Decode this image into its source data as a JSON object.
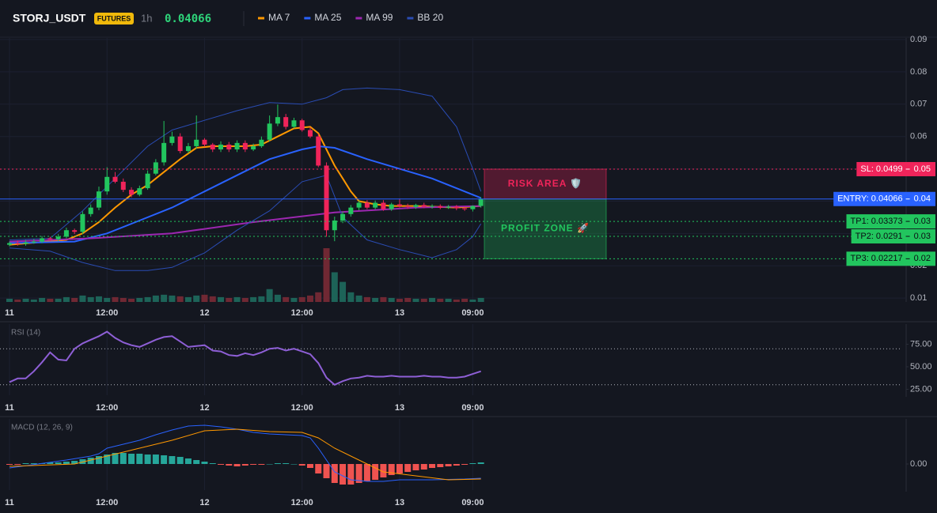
{
  "chart_data": [
    {
      "type": "candlestick",
      "title": "STORJ_USDT",
      "badge": "FUTURES",
      "interval": "1h",
      "last_price": 0.04066,
      "up_color": "#22c55e",
      "down_color": "#f0245a",
      "x": [
        0,
        1,
        2,
        3,
        4,
        5,
        6,
        7,
        8,
        9,
        10,
        11,
        12,
        13,
        14,
        15,
        16,
        17,
        18,
        19,
        20,
        21,
        22,
        23,
        24,
        25,
        26,
        27,
        28,
        29,
        30,
        31,
        32,
        33,
        34,
        35,
        36,
        37,
        38,
        39,
        40,
        41,
        42,
        43,
        44,
        45,
        46,
        47,
        48,
        49,
        50,
        51,
        52,
        53,
        54,
        55,
        56,
        57,
        58
      ],
      "open": [
        0.0265,
        0.027,
        0.0268,
        0.0272,
        0.0275,
        0.0285,
        0.0282,
        0.029,
        0.031,
        0.0305,
        0.036,
        0.038,
        0.043,
        0.0475,
        0.046,
        0.0435,
        0.042,
        0.044,
        0.0485,
        0.052,
        0.058,
        0.06,
        0.0555,
        0.057,
        0.059,
        0.0575,
        0.056,
        0.0575,
        0.056,
        0.058,
        0.056,
        0.057,
        0.059,
        0.064,
        0.066,
        0.063,
        0.065,
        0.062,
        0.06,
        0.051,
        0.031,
        0.034,
        0.036,
        0.038,
        0.0395,
        0.038,
        0.0395,
        0.0375,
        0.039,
        0.0385,
        0.0382,
        0.0388,
        0.0383,
        0.0385,
        0.038,
        0.0383,
        0.0378,
        0.0375,
        0.0385
      ],
      "high": [
        0.0275,
        0.0278,
        0.028,
        0.0283,
        0.0292,
        0.029,
        0.0298,
        0.0318,
        0.0315,
        0.0368,
        0.039,
        0.0445,
        0.0505,
        0.049,
        0.047,
        0.0443,
        0.0448,
        0.0495,
        0.053,
        0.0648,
        0.0615,
        0.061,
        0.058,
        0.0665,
        0.0595,
        0.058,
        0.0585,
        0.0583,
        0.0588,
        0.0588,
        0.0578,
        0.06,
        0.0665,
        0.0699,
        0.067,
        0.0658,
        0.0655,
        0.0628,
        0.0608,
        0.052,
        0.0352,
        0.0368,
        0.0388,
        0.0402,
        0.0403,
        0.0402,
        0.0403,
        0.0395,
        0.0408,
        0.0392,
        0.0392,
        0.0395,
        0.039,
        0.039,
        0.0388,
        0.0388,
        0.0383,
        0.0387,
        0.0412
      ],
      "low": [
        0.026,
        0.0262,
        0.0262,
        0.0268,
        0.027,
        0.0276,
        0.0276,
        0.0285,
        0.0298,
        0.0298,
        0.0352,
        0.0372,
        0.042,
        0.0455,
        0.0428,
        0.0412,
        0.0415,
        0.0435,
        0.048,
        0.051,
        0.0572,
        0.0548,
        0.0548,
        0.0562,
        0.0568,
        0.0552,
        0.0552,
        0.0552,
        0.0552,
        0.0552,
        0.0555,
        0.0565,
        0.0585,
        0.0632,
        0.0622,
        0.0625,
        0.0615,
        0.0595,
        0.0505,
        0.029,
        0.0276,
        0.0332,
        0.0352,
        0.0372,
        0.0375,
        0.0375,
        0.037,
        0.037,
        0.038,
        0.0376,
        0.0376,
        0.0378,
        0.0377,
        0.0375,
        0.0376,
        0.0372,
        0.037,
        0.0368,
        0.038
      ],
      "close": [
        0.027,
        0.0268,
        0.0272,
        0.0275,
        0.0285,
        0.0282,
        0.029,
        0.031,
        0.0305,
        0.036,
        0.038,
        0.043,
        0.0475,
        0.046,
        0.0435,
        0.042,
        0.044,
        0.0485,
        0.052,
        0.058,
        0.06,
        0.0555,
        0.057,
        0.059,
        0.0575,
        0.056,
        0.0575,
        0.056,
        0.058,
        0.056,
        0.057,
        0.059,
        0.064,
        0.066,
        0.063,
        0.065,
        0.062,
        0.06,
        0.051,
        0.031,
        0.034,
        0.036,
        0.038,
        0.0395,
        0.038,
        0.0395,
        0.0375,
        0.039,
        0.0385,
        0.0382,
        0.0388,
        0.0383,
        0.0385,
        0.038,
        0.0383,
        0.0378,
        0.0375,
        0.0385,
        0.04066
      ],
      "volume": [
        4,
        3,
        4,
        3,
        5,
        4,
        4,
        6,
        5,
        8,
        6,
        7,
        5,
        6,
        5,
        4,
        5,
        6,
        8,
        9,
        8,
        7,
        6,
        8,
        9,
        7,
        6,
        5,
        6,
        5,
        6,
        7,
        16,
        9,
        6,
        5,
        6,
        8,
        12,
        67,
        37,
        25,
        12,
        8,
        6,
        5,
        6,
        5,
        4,
        5,
        4,
        4,
        5,
        4,
        4,
        3,
        4,
        3,
        5
      ],
      "series": [
        {
          "name": "MA 7",
          "color": "#ff9800",
          "x": [
            0,
            7,
            9,
            11,
            13,
            15,
            17,
            19,
            21,
            23,
            25,
            27,
            29,
            31,
            33,
            35,
            37,
            38,
            39,
            40,
            41,
            42,
            43,
            45,
            47,
            50,
            55,
            58
          ],
          "values": [
            0.0265,
            0.028,
            0.03,
            0.0335,
            0.038,
            0.042,
            0.045,
            0.049,
            0.053,
            0.0565,
            0.057,
            0.057,
            0.057,
            0.0575,
            0.06,
            0.0625,
            0.063,
            0.061,
            0.056,
            0.051,
            0.047,
            0.043,
            0.04,
            0.039,
            0.0385,
            0.0385,
            0.038,
            0.0385
          ]
        },
        {
          "name": "MA 25",
          "color": "#2962ff",
          "x": [
            0,
            8,
            12,
            16,
            20,
            24,
            28,
            32,
            36,
            38,
            40,
            44,
            48,
            52,
            56,
            58
          ],
          "values": [
            0.027,
            0.0275,
            0.03,
            0.034,
            0.038,
            0.043,
            0.048,
            0.053,
            0.056,
            0.057,
            0.0565,
            0.053,
            0.05,
            0.047,
            0.043,
            0.041
          ]
        },
        {
          "name": "MA 99",
          "color": "#9c27b0",
          "x": [
            0,
            10,
            20,
            30,
            40,
            50,
            58
          ],
          "values": [
            0.0275,
            0.0285,
            0.03,
            0.0335,
            0.0365,
            0.038,
            0.0385
          ]
        },
        {
          "name": "BB 20",
          "color": "#2a4cb3",
          "x": [
            0,
            5,
            9,
            13,
            17,
            20,
            24,
            28,
            32,
            36,
            39,
            41,
            44,
            48,
            52,
            55,
            57,
            58
          ],
          "upper": [
            0.028,
            0.0285,
            0.037,
            0.047,
            0.057,
            0.062,
            0.065,
            0.068,
            0.0705,
            0.07,
            0.072,
            0.0745,
            0.075,
            0.0745,
            0.0725,
            0.063,
            0.05,
            0.043
          ],
          "lower": [
            0.0255,
            0.0245,
            0.021,
            0.0185,
            0.0185,
            0.0195,
            0.024,
            0.031,
            0.037,
            0.046,
            0.048,
            0.035,
            0.028,
            0.025,
            0.0225,
            0.025,
            0.029,
            0.033
          ]
        }
      ],
      "levels": [
        {
          "label": "SL: 0.0499",
          "value": 0.0499,
          "axis_label": "0.05",
          "color": "#f0245a",
          "text_color": "#ffffff",
          "style": "dotted"
        },
        {
          "label": "ENTRY: 0.04066",
          "value": 0.04066,
          "axis_label": "0.04",
          "color": "#2962ff",
          "text_color": "#ffffff",
          "style": "solid"
        },
        {
          "label": "TP1: 0.03373",
          "value": 0.03373,
          "axis_label": "0.03",
          "color": "#22c55e",
          "text_color": "#0b0e14",
          "style": "dotted"
        },
        {
          "label": "TP2: 0.0291",
          "value": 0.0291,
          "axis_label": "0.03",
          "color": "#22c55e",
          "text_color": "#0b0e14",
          "style": "dotted"
        },
        {
          "label": "TP3: 0.02217",
          "value": 0.02217,
          "axis_label": "0.02",
          "color": "#22c55e",
          "text_color": "#0b0e14",
          "style": "dotted"
        }
      ],
      "zones": [
        {
          "label": "RISK AREA 🛡️",
          "from": 0.0499,
          "to": 0.04066,
          "color": "#f0245a"
        },
        {
          "label": "PROFIT ZONE 🚀",
          "from": 0.04066,
          "to": 0.02217,
          "color": "#22c55e"
        }
      ],
      "xticks": [
        {
          "value": 0,
          "label": "11"
        },
        {
          "value": 12,
          "label": "12:00"
        },
        {
          "value": 24,
          "label": "12"
        },
        {
          "value": 36,
          "label": "12:00"
        },
        {
          "value": 48,
          "label": "13"
        },
        {
          "value": 57,
          "label": "09:00"
        }
      ],
      "ylim": [
        0.0088,
        0.0905
      ],
      "yticks": [
        0.01,
        0.02,
        0.03,
        0.04,
        0.05,
        0.06,
        0.07,
        0.08,
        0.09
      ],
      "grid": true
    },
    {
      "type": "line",
      "title": "RSI (14)",
      "color": "#8e5fd6",
      "x": [
        0,
        1,
        2,
        3,
        4,
        5,
        6,
        7,
        8,
        9,
        10,
        11,
        12,
        13,
        14,
        15,
        16,
        17,
        18,
        19,
        20,
        21,
        22,
        23,
        24,
        25,
        26,
        27,
        28,
        29,
        30,
        31,
        32,
        33,
        34,
        35,
        36,
        37,
        38,
        39,
        40,
        41,
        42,
        43,
        44,
        45,
        46,
        47,
        48,
        49,
        50,
        51,
        52,
        53,
        54,
        55,
        56,
        57,
        58
      ],
      "values": [
        33,
        37,
        37,
        45,
        55,
        66,
        58,
        57,
        70,
        76,
        80,
        84,
        89,
        82,
        77,
        74,
        72,
        76,
        80,
        83,
        84,
        78,
        72,
        73,
        74,
        68,
        67,
        63,
        62,
        65,
        63,
        66,
        70,
        71,
        68,
        70,
        67,
        64,
        54,
        38,
        30,
        34,
        37,
        38,
        40,
        39,
        39,
        40,
        39,
        39,
        39,
        40,
        39,
        39,
        38,
        38,
        39,
        42,
        45
      ],
      "reference_lines": [
        70,
        30
      ],
      "xticks": [
        {
          "value": 0,
          "label": "11"
        },
        {
          "value": 12,
          "label": "12:00"
        },
        {
          "value": 24,
          "label": "12"
        },
        {
          "value": 36,
          "label": "12:00"
        },
        {
          "value": 48,
          "label": "13"
        },
        {
          "value": 57,
          "label": "09:00"
        }
      ],
      "ylim": [
        18.4,
        97.4
      ],
      "yticks": [
        {
          "value": 25,
          "label": "25.00"
        },
        {
          "value": 50,
          "label": "50.00"
        },
        {
          "value": 75,
          "label": "75.00"
        }
      ]
    },
    {
      "type": "macd",
      "title": "MACD (12, 26, 9)",
      "series": [
        {
          "color": "#2962ff",
          "x": [
            0,
            7,
            10,
            11,
            12,
            14,
            16,
            18,
            20,
            22,
            24,
            26,
            28,
            30,
            32,
            34,
            36,
            37,
            38,
            39,
            40,
            42,
            44,
            46,
            48,
            52,
            56,
            58
          ],
          "values": [
            -5e-05,
            5e-05,
            0.0001,
            0.00013,
            0.0002,
            0.00025,
            0.0003,
            0.00037,
            0.00043,
            0.00048,
            0.00049,
            0.00047,
            0.00044,
            0.0004,
            0.00038,
            0.00037,
            0.00036,
            0.00033,
            0.0002,
            5e-05,
            -0.0001,
            -0.0002,
            -0.00022,
            -0.00022,
            -0.0002,
            -0.0002,
            -0.00019,
            -0.00018
          ]
        },
        {
          "color": "#ff9800",
          "x": [
            0,
            8,
            12,
            16,
            20,
            24,
            28,
            32,
            36,
            38,
            40,
            42,
            44,
            46,
            50,
            54,
            58
          ],
          "values": [
            -3e-05,
            0,
            0.0001,
            0.0002,
            0.0003,
            0.00042,
            0.00044,
            0.00041,
            0.0004,
            0.00033,
            0.0002,
            0.0001,
            0,
            -0.0001,
            -0.00015,
            -0.0002,
            -0.00019
          ]
        }
      ],
      "histogram": {
        "up_color": "#26a69a",
        "down_color": "#ef5350",
        "x": [
          0,
          1,
          2,
          3,
          4,
          5,
          6,
          7,
          8,
          9,
          10,
          11,
          12,
          13,
          14,
          15,
          16,
          17,
          18,
          19,
          20,
          21,
          22,
          23,
          24,
          25,
          26,
          27,
          28,
          29,
          30,
          31,
          32,
          33,
          34,
          35,
          36,
          37,
          38,
          39,
          40,
          41,
          42,
          43,
          44,
          45,
          46,
          47,
          48,
          49,
          50,
          51,
          52,
          53,
          54,
          55,
          56,
          57,
          58
        ],
        "values": [
          -1e-05,
          -1e-05,
          1e-05,
          1e-05,
          1e-05,
          2e-05,
          2e-05,
          3e-05,
          4e-05,
          6e-05,
          8e-05,
          0.0001,
          0.00012,
          0.00014,
          0.00014,
          0.00013,
          0.00013,
          0.00012,
          0.00012,
          0.00011,
          0.0001,
          9e-05,
          7e-05,
          5e-05,
          3e-05,
          1e-05,
          -1e-05,
          -2e-05,
          -3e-05,
          -2e-05,
          -1e-05,
          -1e-05,
          0,
          1e-05,
          1e-05,
          0,
          -2e-05,
          -5e-05,
          -0.00012,
          -0.00018,
          -0.00024,
          -0.00026,
          -0.00026,
          -0.00024,
          -0.00022,
          -0.0002,
          -0.00017,
          -0.00014,
          -0.00012,
          -0.0001,
          -8e-05,
          -7e-05,
          -5e-05,
          -4e-05,
          -3e-05,
          -2e-05,
          -1e-05,
          1e-05,
          2e-05
        ]
      },
      "xticks": [
        {
          "value": 0,
          "label": "11"
        },
        {
          "value": 12,
          "label": "12:00"
        },
        {
          "value": 24,
          "label": "12"
        },
        {
          "value": 36,
          "label": "12:00"
        },
        {
          "value": 48,
          "label": "13"
        },
        {
          "value": 57,
          "label": "09:00"
        }
      ],
      "ylim": [
        -0.00033,
        0.00057
      ],
      "yticks": [
        {
          "value": 0,
          "label": "0.00"
        }
      ]
    }
  ]
}
